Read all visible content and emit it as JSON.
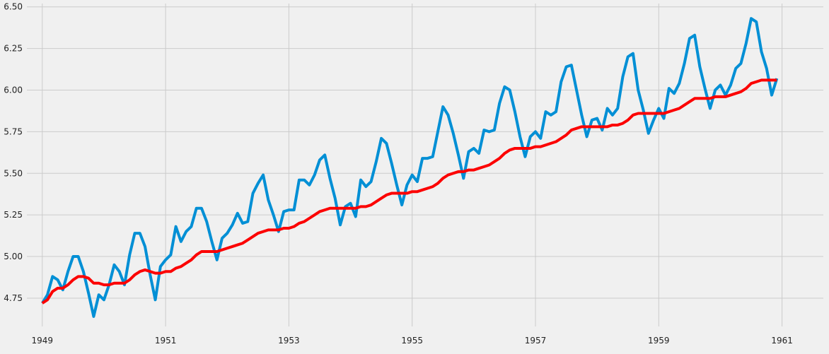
{
  "chart_data": {
    "type": "line",
    "title": "",
    "xlabel": "",
    "ylabel": "",
    "xlim": [
      1948.75,
      1961.67
    ],
    "ylim": [
      4.58,
      6.52
    ],
    "grid": true,
    "background_color": "#f0f0f0",
    "grid_color": "#cbcbcb",
    "x_ticks": [
      1949,
      1951,
      1953,
      1955,
      1957,
      1959,
      1961
    ],
    "x_tick_labels": [
      "1949",
      "1951",
      "1953",
      "1955",
      "1957",
      "1959",
      "1961"
    ],
    "y_ticks": [
      4.75,
      5.0,
      5.25,
      5.5,
      5.75,
      6.0,
      6.25,
      6.5
    ],
    "y_tick_labels": [
      "4.75",
      "5.00",
      "5.25",
      "5.50",
      "5.75",
      "6.00",
      "6.25",
      "6.50"
    ],
    "x_start": 1949.0,
    "x_step": 0.08333,
    "series": [
      {
        "color": "#008fd5",
        "values": [
          4.72,
          4.77,
          4.88,
          4.86,
          4.8,
          4.91,
          5.0,
          5.0,
          4.91,
          4.78,
          4.64,
          4.77,
          4.74,
          4.83,
          4.95,
          4.91,
          4.83,
          5.01,
          5.14,
          5.14,
          5.06,
          4.89,
          4.74,
          4.94,
          4.98,
          5.01,
          5.18,
          5.09,
          5.15,
          5.18,
          5.29,
          5.29,
          5.21,
          5.09,
          4.98,
          5.11,
          5.14,
          5.19,
          5.26,
          5.2,
          5.21,
          5.38,
          5.44,
          5.49,
          5.34,
          5.25,
          5.15,
          5.27,
          5.28,
          5.28,
          5.46,
          5.46,
          5.43,
          5.49,
          5.58,
          5.61,
          5.47,
          5.35,
          5.19,
          5.3,
          5.32,
          5.24,
          5.46,
          5.42,
          5.45,
          5.57,
          5.71,
          5.68,
          5.56,
          5.43,
          5.31,
          5.43,
          5.49,
          5.45,
          5.59,
          5.59,
          5.6,
          5.75,
          5.9,
          5.85,
          5.74,
          5.61,
          5.47,
          5.63,
          5.65,
          5.62,
          5.76,
          5.75,
          5.76,
          5.92,
          6.02,
          6.0,
          5.87,
          5.72,
          5.6,
          5.72,
          5.75,
          5.71,
          5.87,
          5.85,
          5.87,
          6.05,
          6.14,
          6.15,
          6.0,
          5.85,
          5.72,
          5.82,
          5.83,
          5.76,
          5.89,
          5.85,
          5.89,
          6.08,
          6.2,
          6.22,
          6.0,
          5.88,
          5.74,
          5.82,
          5.89,
          5.83,
          6.01,
          5.98,
          6.04,
          6.16,
          6.31,
          6.33,
          6.14,
          6.01,
          5.89,
          6.0,
          6.03,
          5.97,
          6.03,
          6.13,
          6.16,
          6.28,
          6.43,
          6.41,
          6.23,
          6.13,
          5.97,
          6.07
        ]
      },
      {
        "color": "#fc0000",
        "values": [
          4.72,
          4.74,
          4.79,
          4.81,
          4.81,
          4.83,
          4.86,
          4.88,
          4.88,
          4.87,
          4.84,
          4.84,
          4.83,
          4.83,
          4.84,
          4.84,
          4.84,
          4.86,
          4.89,
          4.91,
          4.92,
          4.91,
          4.9,
          4.9,
          4.91,
          4.91,
          4.93,
          4.94,
          4.96,
          4.98,
          5.01,
          5.03,
          5.03,
          5.03,
          5.03,
          5.04,
          5.05,
          5.06,
          5.07,
          5.08,
          5.1,
          5.12,
          5.14,
          5.15,
          5.16,
          5.16,
          5.16,
          5.17,
          5.17,
          5.18,
          5.2,
          5.21,
          5.23,
          5.25,
          5.27,
          5.28,
          5.29,
          5.29,
          5.29,
          5.29,
          5.29,
          5.29,
          5.3,
          5.3,
          5.31,
          5.33,
          5.35,
          5.37,
          5.38,
          5.38,
          5.38,
          5.38,
          5.39,
          5.39,
          5.4,
          5.41,
          5.42,
          5.44,
          5.47,
          5.49,
          5.5,
          5.51,
          5.51,
          5.52,
          5.52,
          5.53,
          5.54,
          5.55,
          5.57,
          5.59,
          5.62,
          5.64,
          5.65,
          5.65,
          5.65,
          5.65,
          5.66,
          5.66,
          5.67,
          5.68,
          5.69,
          5.71,
          5.73,
          5.76,
          5.77,
          5.78,
          5.78,
          5.78,
          5.78,
          5.78,
          5.78,
          5.79,
          5.79,
          5.8,
          5.82,
          5.85,
          5.86,
          5.86,
          5.86,
          5.86,
          5.86,
          5.86,
          5.87,
          5.88,
          5.89,
          5.91,
          5.93,
          5.95,
          5.95,
          5.95,
          5.95,
          5.96,
          5.96,
          5.96,
          5.97,
          5.98,
          5.99,
          6.01,
          6.04,
          6.05,
          6.06,
          6.06,
          6.06,
          6.06
        ]
      }
    ]
  }
}
